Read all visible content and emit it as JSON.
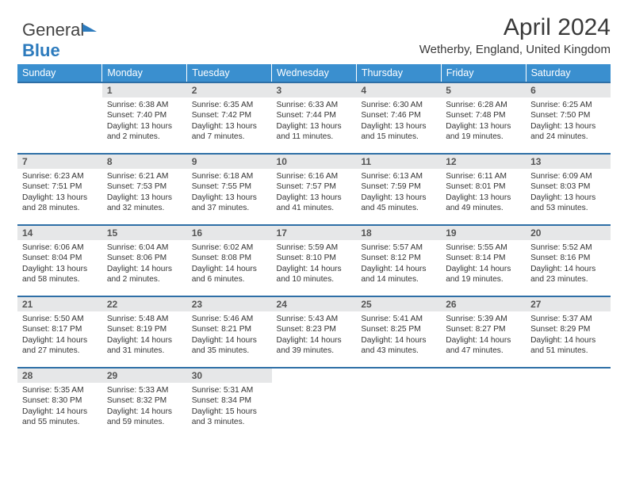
{
  "logo": {
    "text_gray": "General",
    "text_blue": "Blue"
  },
  "title": "April 2024",
  "location": "Wetherby, England, United Kingdom",
  "colors": {
    "header_bg": "#3a8fcf",
    "header_text": "#ffffff",
    "row_border": "#2e6fa6",
    "daynum_bg": "#e6e7e8",
    "logo_blue": "#2d7bbd"
  },
  "weekdays": [
    "Sunday",
    "Monday",
    "Tuesday",
    "Wednesday",
    "Thursday",
    "Friday",
    "Saturday"
  ],
  "start_offset": 1,
  "days": [
    {
      "n": 1,
      "sr": "6:38 AM",
      "ss": "7:40 PM",
      "dl": "13 hours and 2 minutes."
    },
    {
      "n": 2,
      "sr": "6:35 AM",
      "ss": "7:42 PM",
      "dl": "13 hours and 7 minutes."
    },
    {
      "n": 3,
      "sr": "6:33 AM",
      "ss": "7:44 PM",
      "dl": "13 hours and 11 minutes."
    },
    {
      "n": 4,
      "sr": "6:30 AM",
      "ss": "7:46 PM",
      "dl": "13 hours and 15 minutes."
    },
    {
      "n": 5,
      "sr": "6:28 AM",
      "ss": "7:48 PM",
      "dl": "13 hours and 19 minutes."
    },
    {
      "n": 6,
      "sr": "6:25 AM",
      "ss": "7:50 PM",
      "dl": "13 hours and 24 minutes."
    },
    {
      "n": 7,
      "sr": "6:23 AM",
      "ss": "7:51 PM",
      "dl": "13 hours and 28 minutes."
    },
    {
      "n": 8,
      "sr": "6:21 AM",
      "ss": "7:53 PM",
      "dl": "13 hours and 32 minutes."
    },
    {
      "n": 9,
      "sr": "6:18 AM",
      "ss": "7:55 PM",
      "dl": "13 hours and 37 minutes."
    },
    {
      "n": 10,
      "sr": "6:16 AM",
      "ss": "7:57 PM",
      "dl": "13 hours and 41 minutes."
    },
    {
      "n": 11,
      "sr": "6:13 AM",
      "ss": "7:59 PM",
      "dl": "13 hours and 45 minutes."
    },
    {
      "n": 12,
      "sr": "6:11 AM",
      "ss": "8:01 PM",
      "dl": "13 hours and 49 minutes."
    },
    {
      "n": 13,
      "sr": "6:09 AM",
      "ss": "8:03 PM",
      "dl": "13 hours and 53 minutes."
    },
    {
      "n": 14,
      "sr": "6:06 AM",
      "ss": "8:04 PM",
      "dl": "13 hours and 58 minutes."
    },
    {
      "n": 15,
      "sr": "6:04 AM",
      "ss": "8:06 PM",
      "dl": "14 hours and 2 minutes."
    },
    {
      "n": 16,
      "sr": "6:02 AM",
      "ss": "8:08 PM",
      "dl": "14 hours and 6 minutes."
    },
    {
      "n": 17,
      "sr": "5:59 AM",
      "ss": "8:10 PM",
      "dl": "14 hours and 10 minutes."
    },
    {
      "n": 18,
      "sr": "5:57 AM",
      "ss": "8:12 PM",
      "dl": "14 hours and 14 minutes."
    },
    {
      "n": 19,
      "sr": "5:55 AM",
      "ss": "8:14 PM",
      "dl": "14 hours and 19 minutes."
    },
    {
      "n": 20,
      "sr": "5:52 AM",
      "ss": "8:16 PM",
      "dl": "14 hours and 23 minutes."
    },
    {
      "n": 21,
      "sr": "5:50 AM",
      "ss": "8:17 PM",
      "dl": "14 hours and 27 minutes."
    },
    {
      "n": 22,
      "sr": "5:48 AM",
      "ss": "8:19 PM",
      "dl": "14 hours and 31 minutes."
    },
    {
      "n": 23,
      "sr": "5:46 AM",
      "ss": "8:21 PM",
      "dl": "14 hours and 35 minutes."
    },
    {
      "n": 24,
      "sr": "5:43 AM",
      "ss": "8:23 PM",
      "dl": "14 hours and 39 minutes."
    },
    {
      "n": 25,
      "sr": "5:41 AM",
      "ss": "8:25 PM",
      "dl": "14 hours and 43 minutes."
    },
    {
      "n": 26,
      "sr": "5:39 AM",
      "ss": "8:27 PM",
      "dl": "14 hours and 47 minutes."
    },
    {
      "n": 27,
      "sr": "5:37 AM",
      "ss": "8:29 PM",
      "dl": "14 hours and 51 minutes."
    },
    {
      "n": 28,
      "sr": "5:35 AM",
      "ss": "8:30 PM",
      "dl": "14 hours and 55 minutes."
    },
    {
      "n": 29,
      "sr": "5:33 AM",
      "ss": "8:32 PM",
      "dl": "14 hours and 59 minutes."
    },
    {
      "n": 30,
      "sr": "5:31 AM",
      "ss": "8:34 PM",
      "dl": "15 hours and 3 minutes."
    }
  ],
  "labels": {
    "sunrise": "Sunrise:",
    "sunset": "Sunset:",
    "daylight": "Daylight:"
  }
}
